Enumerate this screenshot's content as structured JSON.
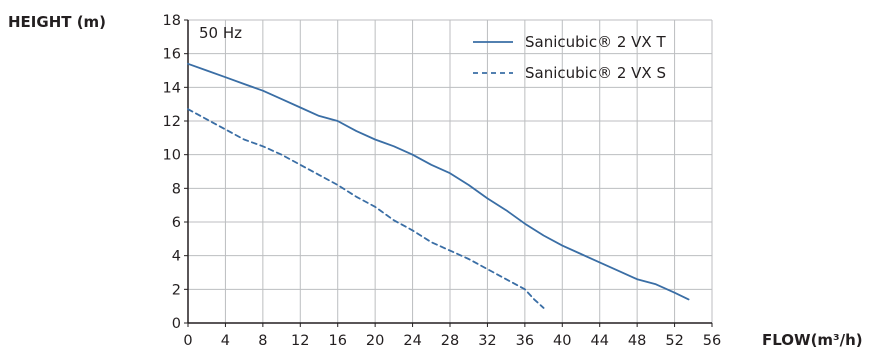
{
  "chart_data": {
    "type": "line",
    "ylabel": "HEIGHT (m)",
    "xlabel": "FLOW(m³/h)",
    "annotation": "50 Hz",
    "xlim": [
      0,
      56
    ],
    "ylim": [
      0,
      18
    ],
    "x_ticks": [
      0,
      4,
      8,
      12,
      16,
      20,
      24,
      28,
      32,
      36,
      40,
      44,
      48,
      52,
      56
    ],
    "y_ticks": [
      0,
      2,
      4,
      6,
      8,
      10,
      12,
      14,
      16,
      18
    ],
    "x_tick_labels": [
      "0",
      "4",
      "8",
      "12",
      "16",
      "20",
      "24",
      "28",
      "32",
      "36",
      "40",
      "44",
      "48",
      "52",
      "56"
    ],
    "y_tick_labels": [
      "0",
      "2",
      "4",
      "6",
      "8",
      "10",
      "12",
      "14",
      "16",
      "18"
    ],
    "grid": true,
    "legend_position": "top-right",
    "series_color": "#3a6ea5",
    "series": [
      {
        "name": "Sanicubic® 2 VX T",
        "style": "solid",
        "x": [
          0,
          2,
          4,
          6,
          8,
          10,
          12,
          14,
          16,
          18,
          20,
          22,
          24,
          26,
          28,
          30,
          32,
          34,
          36,
          38,
          40,
          42,
          44,
          46,
          48,
          50,
          52,
          53.5
        ],
        "y": [
          15.4,
          15.0,
          14.6,
          14.2,
          13.8,
          13.3,
          12.8,
          12.3,
          12.0,
          11.4,
          10.9,
          10.5,
          10.0,
          9.4,
          8.9,
          8.2,
          7.4,
          6.7,
          5.9,
          5.2,
          4.6,
          4.1,
          3.6,
          3.1,
          2.6,
          2.3,
          1.8,
          1.4
        ]
      },
      {
        "name": "Sanicubic® 2 VX S",
        "style": "dashed",
        "x": [
          0,
          2,
          4,
          6,
          8,
          10,
          12,
          14,
          16,
          18,
          20,
          22,
          24,
          26,
          28,
          30,
          32,
          34,
          36,
          37,
          38
        ],
        "y": [
          12.7,
          12.1,
          11.5,
          10.9,
          10.5,
          10.0,
          9.4,
          8.8,
          8.2,
          7.5,
          6.9,
          6.1,
          5.5,
          4.8,
          4.3,
          3.8,
          3.2,
          2.6,
          2.0,
          1.4,
          0.9
        ]
      }
    ]
  }
}
